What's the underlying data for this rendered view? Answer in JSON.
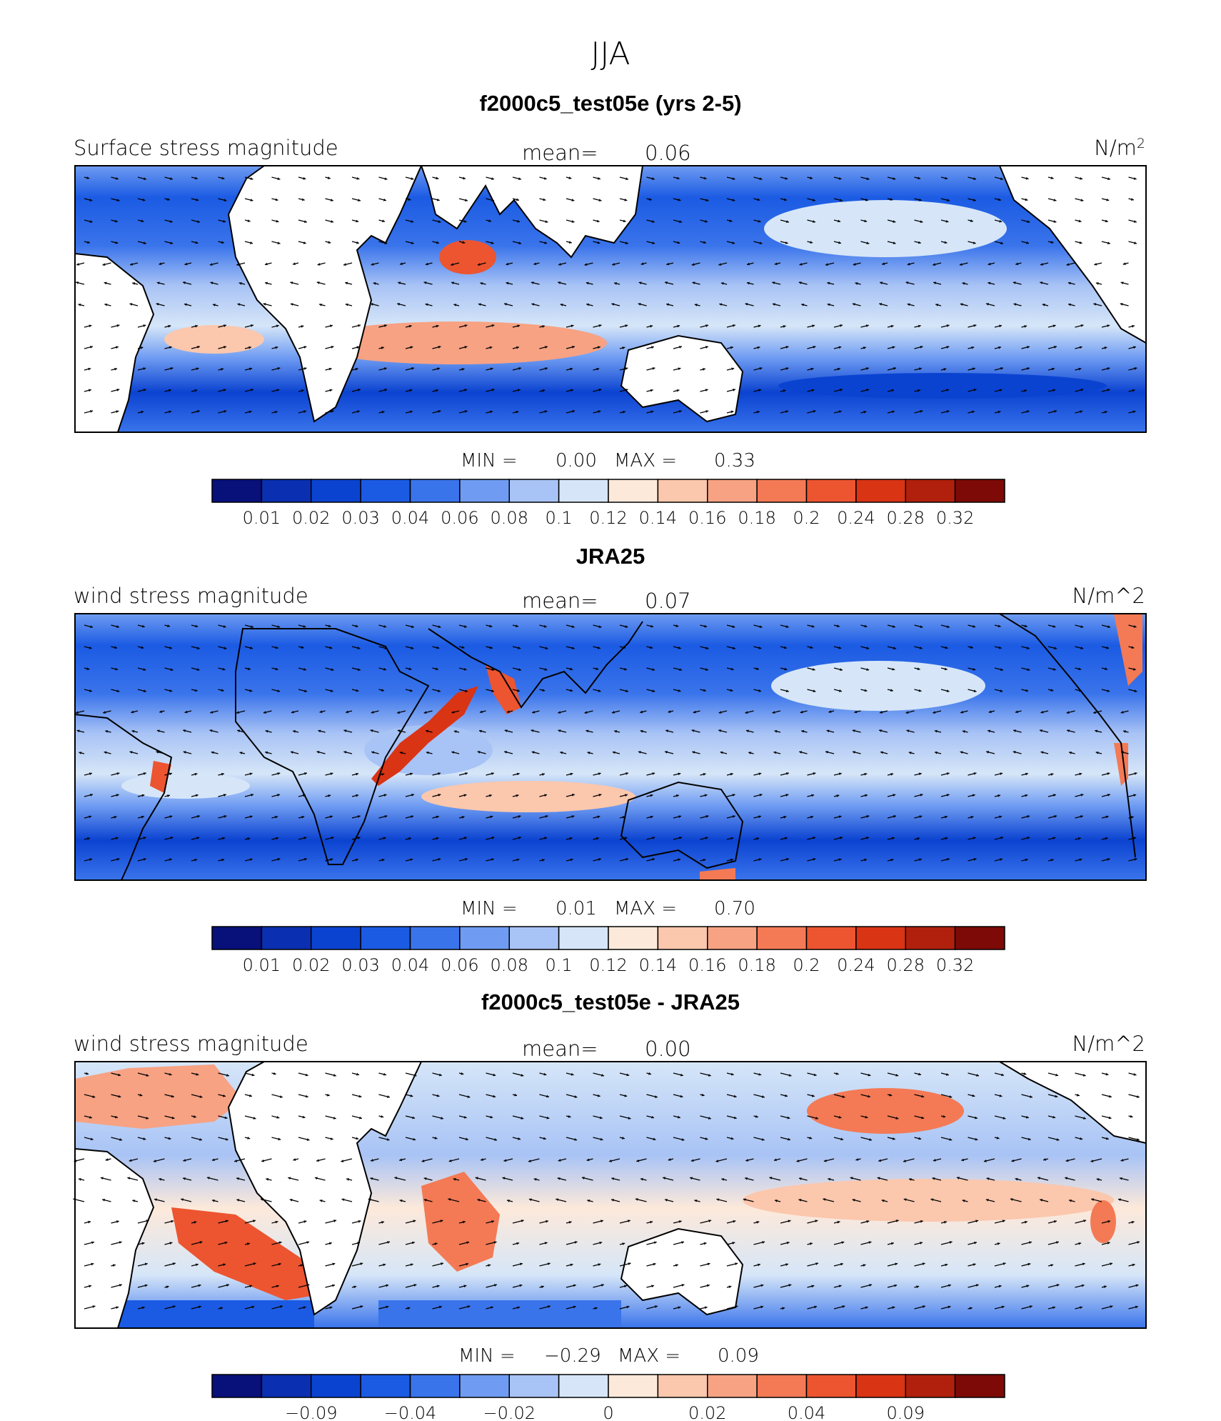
{
  "figure_title": "JJA",
  "panels": [
    {
      "title": "f2000c5_test05e (yrs 2-5)",
      "left_label": "Surface stress magnitude",
      "mean_label": "mean=",
      "mean_value": "0.06",
      "units": "N/m",
      "units_sup": "2",
      "min_label": "MIN =",
      "min_value": "0.00",
      "max_label": "MAX =",
      "max_value": "0.33",
      "colorbar_ticks": [
        "0.01",
        "0.02",
        "0.03",
        "0.04",
        "0.06",
        "0.08",
        "0.1",
        "0.12",
        "0.14",
        "0.16",
        "0.18",
        "0.2",
        "0.24",
        "0.28",
        "0.32"
      ]
    },
    {
      "title": "JRA25",
      "left_label": "wind stress magnitude",
      "mean_label": "mean=",
      "mean_value": "0.07",
      "units": "N/m^2",
      "units_sup": "",
      "min_label": "MIN =",
      "min_value": "0.01",
      "max_label": "MAX =",
      "max_value": "0.70",
      "colorbar_ticks": [
        "0.01",
        "0.02",
        "0.03",
        "0.04",
        "0.06",
        "0.08",
        "0.1",
        "0.12",
        "0.14",
        "0.16",
        "0.18",
        "0.2",
        "0.24",
        "0.28",
        "0.32"
      ]
    },
    {
      "title": "f2000c5_test05e - JRA25",
      "left_label": "wind stress magnitude",
      "mean_label": "mean=",
      "mean_value": "0.00",
      "units": "N/m^2",
      "units_sup": "",
      "min_label": "MIN =",
      "min_value": "−0.29",
      "max_label": "MAX =",
      "max_value": "0.09",
      "colorbar_ticks": [
        "−0.09",
        "−0.04",
        "−0.02",
        "0",
        "0.02",
        "0.04",
        "0.09"
      ]
    }
  ],
  "colors": {
    "palette": [
      "#08107a",
      "#0a2fb0",
      "#0b43d1",
      "#1b5be3",
      "#3a74eb",
      "#6f9cf2",
      "#a8c3f5",
      "#d6e6f8",
      "#fde9da",
      "#fbc7ad",
      "#f7a283",
      "#f37a55",
      "#ec5530",
      "#d93414",
      "#b0200c",
      "#7d0a06"
    ],
    "land": "#ffffff",
    "coast": "#000000",
    "arrow": "#000000"
  }
}
